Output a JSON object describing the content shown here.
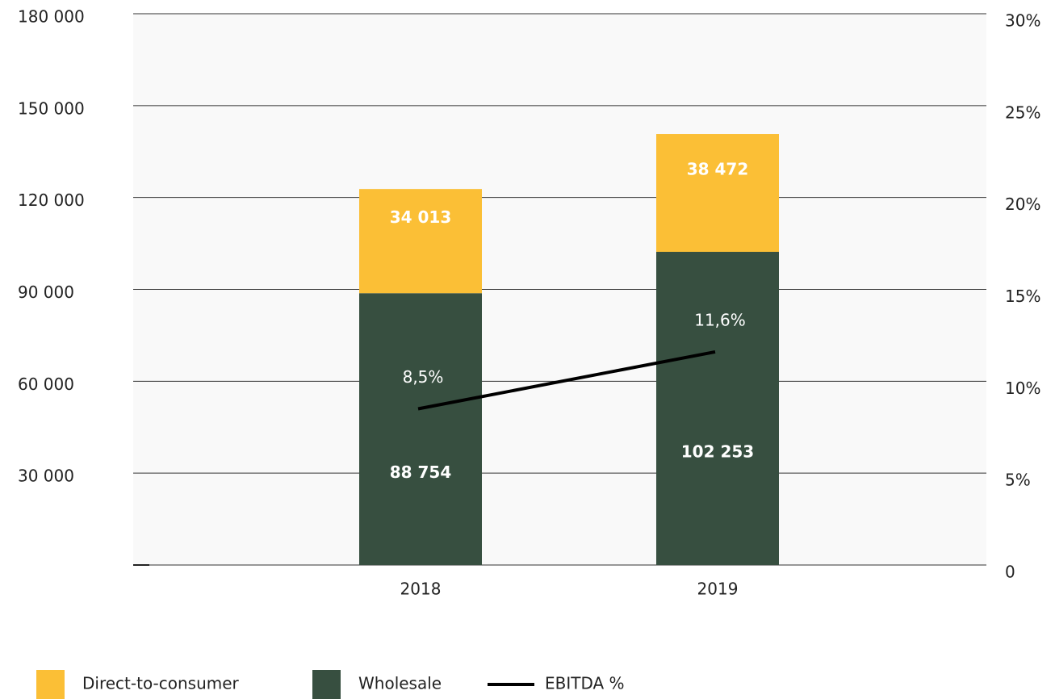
{
  "chart_data": {
    "type": "stacked_bar_line",
    "categories": [
      "2018",
      "2019"
    ],
    "series": [
      {
        "name": "Wholesale",
        "color": "#374f40",
        "values": [
          88754,
          102253
        ],
        "value_labels": [
          "88 754",
          "102 253"
        ]
      },
      {
        "name": "Direct-to-consumer",
        "color": "#fbbf36",
        "values": [
          34013,
          38472
        ],
        "value_labels": [
          "34 013",
          "38 472"
        ]
      },
      {
        "name": "EBITDA %",
        "color": "#000000",
        "axis": "y2",
        "type": "line",
        "values": [
          8.5,
          11.6
        ],
        "value_labels": [
          "8,5%",
          "11,6%"
        ]
      }
    ],
    "ylim": [
      0,
      180000
    ],
    "yticks": [
      {
        "value": 30000,
        "label": "30 000"
      },
      {
        "value": 60000,
        "label": "60 000"
      },
      {
        "value": 90000,
        "label": "90 000"
      },
      {
        "value": 120000,
        "label": "120 000"
      },
      {
        "value": 150000,
        "label": "150 000"
      },
      {
        "value": 180000,
        "label": "180 000"
      }
    ],
    "y2lim": [
      0,
      30
    ],
    "y2ticks": [
      0,
      {
        "value": 5,
        "label": "5%"
      },
      {
        "value": 10,
        "label": "10%"
      },
      {
        "value": 15,
        "label": "15%"
      },
      {
        "value": 20,
        "label": "20%"
      },
      {
        "value": 25,
        "label": "25%"
      },
      {
        "value": 30,
        "label": "30%"
      }
    ],
    "grid": true,
    "legend": "bottom-left"
  }
}
